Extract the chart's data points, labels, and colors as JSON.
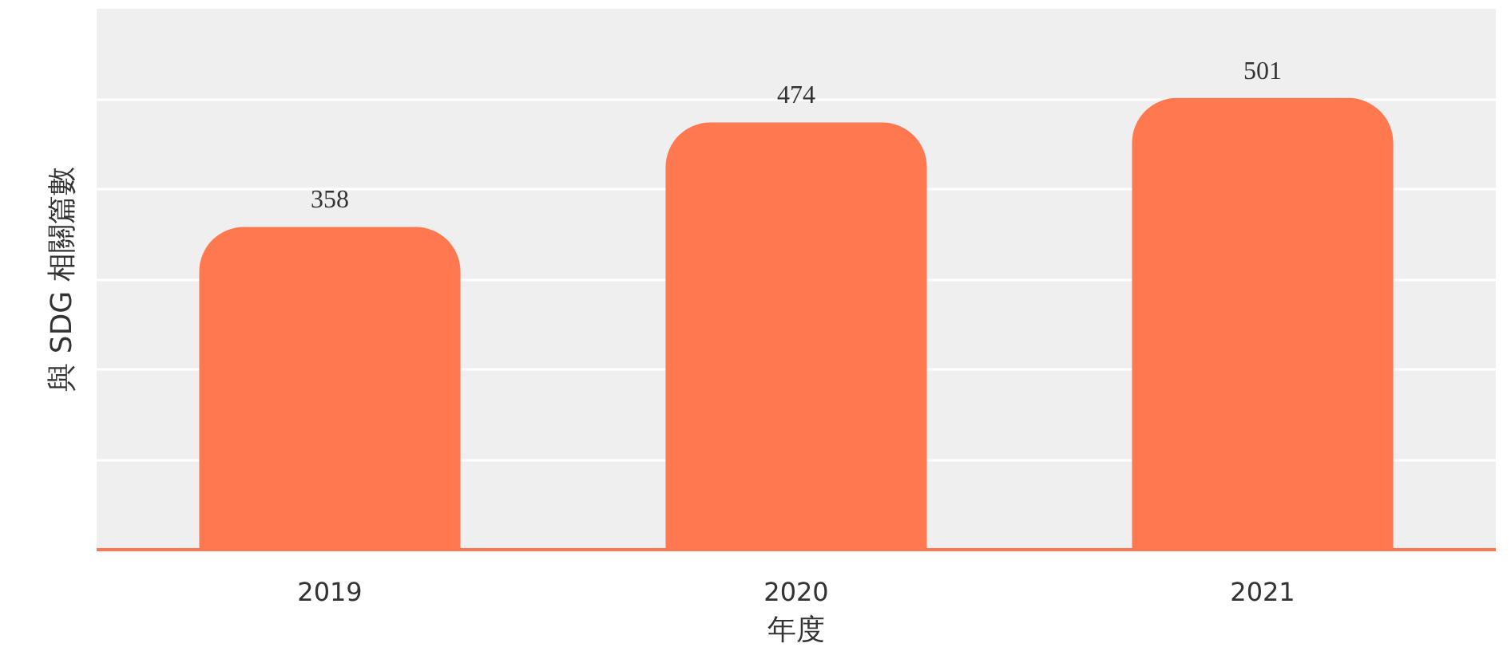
{
  "chart_data": {
    "type": "bar",
    "xlabel": "年度",
    "ylabel": "與 SDG 相關篇數",
    "categories": [
      "2019",
      "2020",
      "2021"
    ],
    "values": [
      358,
      474,
      501
    ],
    "color": "#ff7850",
    "ylim": [
      0,
      600
    ],
    "yticks": [
      {
        "value": 0,
        "label": null
      },
      {
        "value": 100,
        "label": null
      },
      {
        "value": 200,
        "label": null
      },
      {
        "value": 300,
        "label": null
      },
      {
        "value": 400,
        "label": null
      },
      {
        "value": 500,
        "label": null
      },
      {
        "value": 600,
        "label": null
      }
    ],
    "tick_labels": "x",
    "grid": "y",
    "data_labels": true
  }
}
